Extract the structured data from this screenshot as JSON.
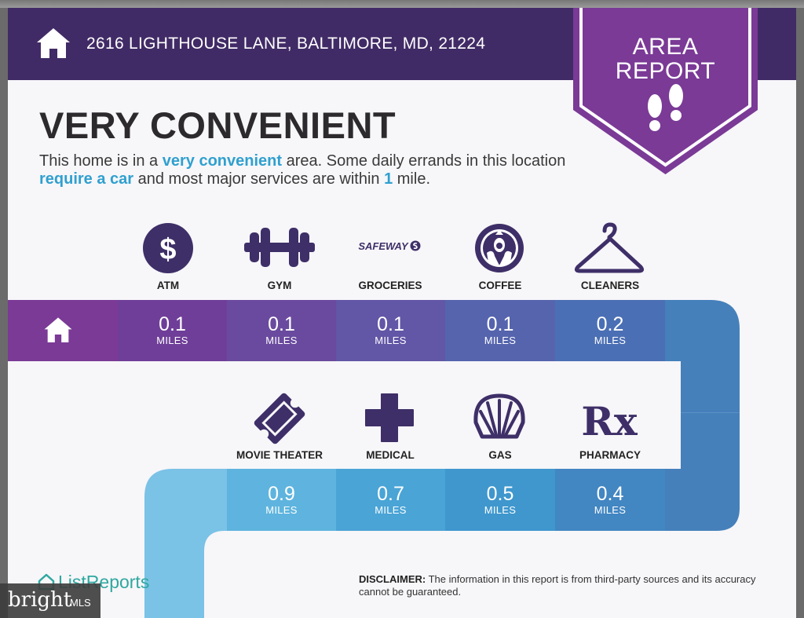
{
  "header": {
    "address": "2616 LIGHTHOUSE LANE, BALTIMORE, MD, 21224",
    "home_icon": "house-icon"
  },
  "badge": {
    "line1": "AREA",
    "line2": "REPORT",
    "icon": "footprints-icon"
  },
  "title": "VERY CONVENIENT",
  "description": {
    "p1": "This home is in a ",
    "h1": "very convenient",
    "p2": " area. Some daily errands in this location ",
    "h2": "require a car",
    "p3": " and most major services are within ",
    "h3": "1",
    "p4": " mile."
  },
  "row1": [
    {
      "label": "ATM",
      "icon": "dollar-icon",
      "distance": "0.1",
      "unit": "MILES"
    },
    {
      "label": "GYM",
      "icon": "dumbbell-icon",
      "distance": "0.1",
      "unit": "MILES"
    },
    {
      "label": "GROCERIES",
      "icon": "safeway-logo",
      "logo_text": "SAFEWAY",
      "distance": "0.1",
      "unit": "MILES"
    },
    {
      "label": "COFFEE",
      "icon": "starbucks-logo",
      "distance": "0.1",
      "unit": "MILES"
    },
    {
      "label": "CLEANERS",
      "icon": "hanger-icon",
      "distance": "0.2",
      "unit": "MILES"
    }
  ],
  "row2": [
    {
      "label": "MOVIE THEATER",
      "icon": "ticket-icon",
      "distance": "0.9",
      "unit": "MILES"
    },
    {
      "label": "MEDICAL",
      "icon": "medical-cross-icon",
      "distance": "0.7",
      "unit": "MILES"
    },
    {
      "label": "GAS",
      "icon": "shell-logo",
      "distance": "0.5",
      "unit": "MILES"
    },
    {
      "label": "PHARMACY",
      "icon": "rx-icon",
      "logo_text": "Rx",
      "distance": "0.4",
      "unit": "MILES"
    }
  ],
  "footer": {
    "logo": "ListReports",
    "disclaimer_label": "DISCLAIMER:",
    "disclaimer_text": " The information in this report is from third-party sources and its accuracy cannot be guaranteed."
  },
  "watermark": {
    "brand": "bright",
    "suffix": "MLS"
  },
  "colors": {
    "header": "#412b66",
    "badge": "#7a3a96",
    "highlight": "#2fa0cf",
    "icon": "#3e2f68"
  }
}
